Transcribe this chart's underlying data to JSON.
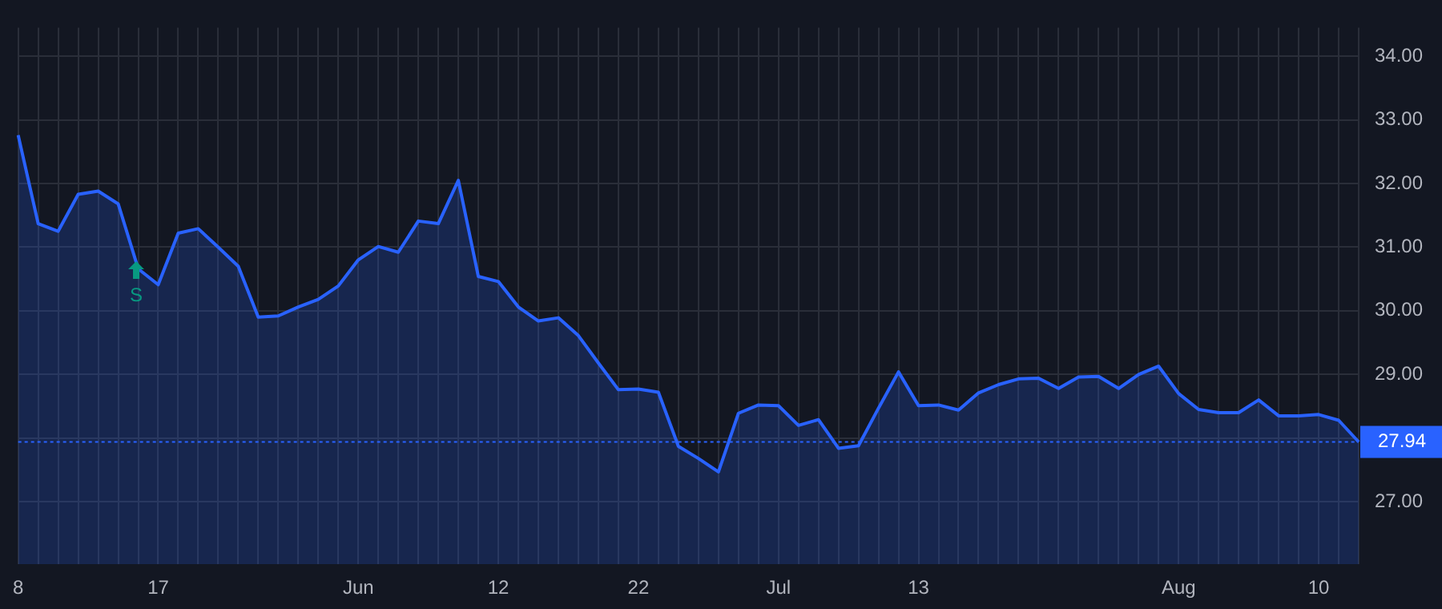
{
  "chart_data": {
    "type": "area",
    "categories": [
      "8",
      null,
      null,
      null,
      null,
      null,
      null,
      "17",
      null,
      null,
      null,
      null,
      null,
      null,
      null,
      null,
      null,
      "Jun",
      null,
      null,
      null,
      null,
      null,
      null,
      "12",
      null,
      null,
      null,
      null,
      null,
      null,
      "22",
      null,
      null,
      null,
      null,
      null,
      null,
      "Jul",
      null,
      null,
      null,
      null,
      null,
      null,
      "13",
      null,
      null,
      null,
      null,
      null,
      null,
      null,
      null,
      null,
      null,
      null,
      null,
      "Aug",
      null,
      null,
      null,
      null,
      null,
      null,
      "10",
      null,
      null
    ],
    "series": [
      {
        "color": "#2962ff",
        "values": [
          32.76,
          31.37,
          31.25,
          31.83,
          31.88,
          31.68,
          30.66,
          30.41,
          31.22,
          31.29,
          31.0,
          30.7,
          29.9,
          29.92,
          30.06,
          30.18,
          30.39,
          30.8,
          31.01,
          30.92,
          31.41,
          31.37,
          32.05,
          30.54,
          30.46,
          30.06,
          29.84,
          29.89,
          29.61,
          29.18,
          28.76,
          28.77,
          28.72,
          27.87,
          27.68,
          27.47,
          28.39,
          28.52,
          28.51,
          28.2,
          28.29,
          27.84,
          27.88,
          28.47,
          29.04,
          28.51,
          28.52,
          28.44,
          28.71,
          28.84,
          28.93,
          28.94,
          28.78,
          28.96,
          28.97,
          28.78,
          29.0,
          29.13,
          28.7,
          28.45,
          28.4,
          28.4,
          28.6,
          28.35,
          28.35,
          28.37,
          28.28,
          27.94
        ]
      }
    ],
    "ylim": [
      26.02,
      34.45
    ],
    "yticks": [
      {
        "value": 27,
        "label": "27.00"
      },
      {
        "value": 28,
        "label": null
      },
      {
        "value": 29,
        "label": "29.00"
      },
      {
        "value": 30,
        "label": "30.00"
      },
      {
        "value": 31,
        "label": "31.00"
      },
      {
        "value": 32,
        "label": "32.00"
      },
      {
        "value": 33,
        "label": "33.00"
      },
      {
        "value": 34,
        "label": "34.00"
      }
    ],
    "ref_lines": [
      {
        "axis": "y",
        "value": 27.94,
        "label": "27.94",
        "color": "#2962ff",
        "line_style": "dotted"
      }
    ],
    "annotations": [
      "S"
    ],
    "grid": true,
    "legend": false,
    "marker": "none",
    "line_style": "solid"
  }
}
